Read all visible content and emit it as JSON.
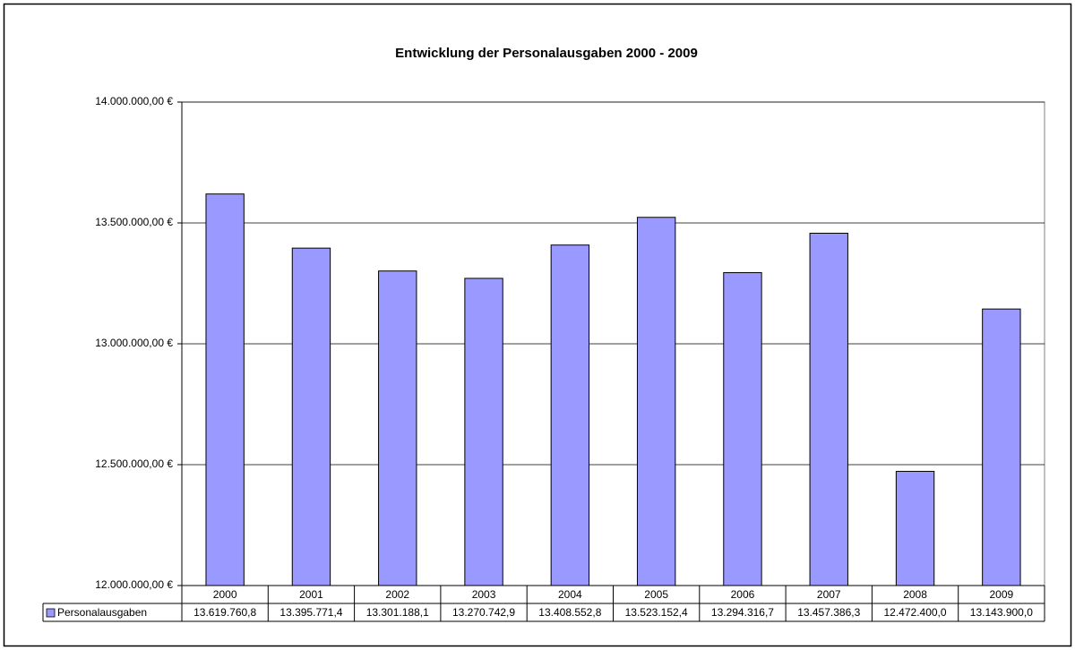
{
  "chart_data": {
    "type": "bar",
    "title": "Entwicklung der Personalausgaben 2000 - 2009",
    "categories": [
      "2000",
      "2001",
      "2002",
      "2003",
      "2004",
      "2005",
      "2006",
      "2007",
      "2008",
      "2009"
    ],
    "series": [
      {
        "name": "Personalausgaben",
        "color": "#9999ff",
        "values": [
          13619760.8,
          13395771.4,
          13301188.1,
          13270742.9,
          13408552.8,
          13523152.4,
          13294316.7,
          13457386.3,
          12472400.0,
          13143900.0
        ],
        "value_labels": [
          "13.619.760,8",
          "13.395.771,4",
          "13.301.188,1",
          "13.270.742,9",
          "13.408.552,8",
          "13.523.152,4",
          "13.294.316,7",
          "13.457.386,3",
          "12.472.400,0",
          "13.143.900,0"
        ]
      }
    ],
    "ylim": [
      12000000,
      14000000
    ],
    "yticks": [
      {
        "value": 12000000,
        "label": "12.000.000,00 €"
      },
      {
        "value": 12500000,
        "label": "12.500.000,00 €"
      },
      {
        "value": 13000000,
        "label": "13.000.000,00 €"
      },
      {
        "value": 13500000,
        "label": "13.500.000,00 €"
      },
      {
        "value": 14000000,
        "label": "14.000.000,00 €"
      }
    ],
    "grid": true
  }
}
